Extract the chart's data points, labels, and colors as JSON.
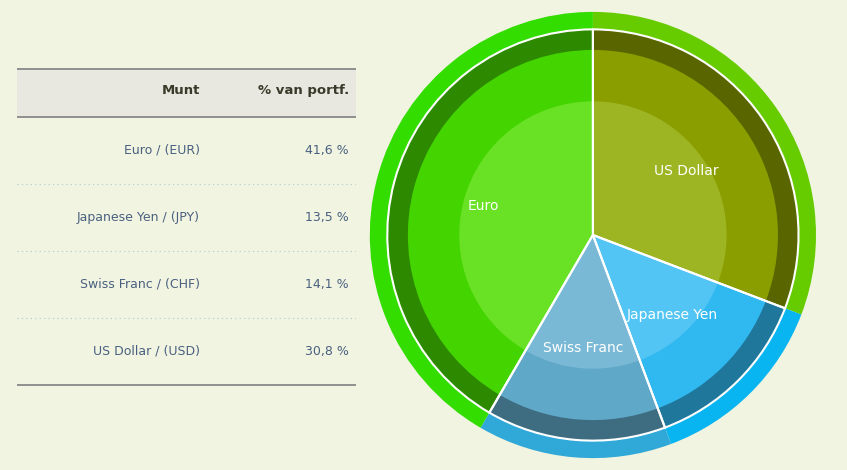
{
  "background_color": "#f0f4e0",
  "table": {
    "header_bg": "#e8e8e0",
    "header_color": "#3a3a2a",
    "row_color": "#4a6080",
    "value_color": "#4a6080",
    "separator_top": "#888888",
    "separator_mid": "#888888",
    "separator_bottom": "#888888",
    "dot_color": "#aaccdd",
    "headers": [
      "Munt",
      "% van portf."
    ],
    "rows": [
      [
        "Euro / (EUR)",
        "41,6 %"
      ],
      [
        "Japanese Yen / (JPY)",
        "13,5 %"
      ],
      [
        "Swiss Franc / (CHF)",
        "14,1 %"
      ],
      [
        "US Dollar / (USD)",
        "30,8 %"
      ]
    ]
  },
  "pie": {
    "labels": [
      "US Dollar",
      "Japanese Yen",
      "Swiss Franc",
      "Euro"
    ],
    "values": [
      30.8,
      13.5,
      14.1,
      41.6
    ],
    "slice_colors": [
      "#8a9e00",
      "#30b8f0",
      "#60a8c8",
      "#44d400"
    ],
    "slice_light_colors": [
      "#b0c840",
      "#70d0f8",
      "#90c8e0",
      "#88ee44"
    ],
    "border_color": "#44dd00",
    "border_colors": [
      "#66aa00",
      "#1ab0ee",
      "#3898c0",
      "#33cc00"
    ],
    "outer_ring_colors": [
      "#66cc00",
      "#09b5f0",
      "#30a8d8",
      "#33dd00"
    ],
    "start_angle": 90,
    "text_color": "#ffffff",
    "label_fontsize": 10
  }
}
